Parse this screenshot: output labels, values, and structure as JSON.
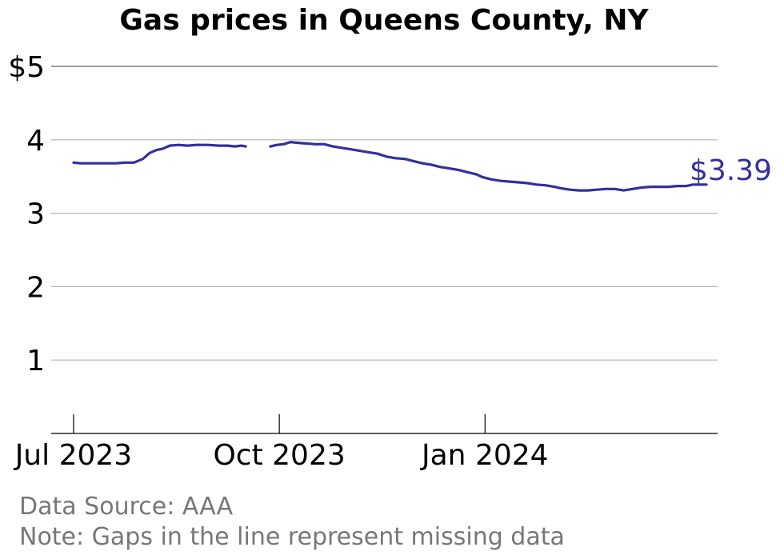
{
  "chart_data": {
    "type": "line",
    "title": "Gas prices in Queens County, NY",
    "xlabel": "",
    "ylabel": "",
    "ylim": [
      0,
      5
    ],
    "xlim": [
      "2023-06-21",
      "2024-04-14"
    ],
    "y_ticks": [
      {
        "value": 5,
        "label": "$5"
      },
      {
        "value": 4,
        "label": "4"
      },
      {
        "value": 3,
        "label": "3"
      },
      {
        "value": 2,
        "label": "2"
      },
      {
        "value": 1,
        "label": "1"
      }
    ],
    "x_ticks": [
      {
        "date": "2023-07-01",
        "label": "Jul 2023"
      },
      {
        "date": "2023-10-01",
        "label": "Oct 2023"
      },
      {
        "date": "2024-01-01",
        "label": "Jan 2024"
      }
    ],
    "grid": true,
    "line_color": "#332f9c",
    "end_label": "$3.39",
    "series": [
      {
        "segments": [
          [
            [
              "2023-07-01",
              3.69
            ],
            [
              "2023-07-04",
              3.68
            ],
            [
              "2023-07-08",
              3.68
            ],
            [
              "2023-07-12",
              3.68
            ],
            [
              "2023-07-16",
              3.68
            ],
            [
              "2023-07-20",
              3.68
            ],
            [
              "2023-07-24",
              3.69
            ],
            [
              "2023-07-28",
              3.69
            ],
            [
              "2023-08-01",
              3.74
            ],
            [
              "2023-08-04",
              3.82
            ],
            [
              "2023-08-07",
              3.86
            ],
            [
              "2023-08-10",
              3.88
            ],
            [
              "2023-08-13",
              3.92
            ],
            [
              "2023-08-17",
              3.93
            ],
            [
              "2023-08-21",
              3.92
            ],
            [
              "2023-08-25",
              3.93
            ],
            [
              "2023-08-30",
              3.93
            ],
            [
              "2023-09-04",
              3.92
            ],
            [
              "2023-09-08",
              3.92
            ],
            [
              "2023-09-11",
              3.91
            ],
            [
              "2023-09-14",
              3.92
            ],
            [
              "2023-09-16",
              3.91
            ]
          ],
          [
            [
              "2023-09-27",
              3.91
            ],
            [
              "2023-09-30",
              3.93
            ],
            [
              "2023-10-03",
              3.94
            ],
            [
              "2023-10-06",
              3.97
            ],
            [
              "2023-10-09",
              3.96
            ],
            [
              "2023-10-13",
              3.95
            ],
            [
              "2023-10-17",
              3.94
            ],
            [
              "2023-10-21",
              3.94
            ],
            [
              "2023-10-25",
              3.91
            ],
            [
              "2023-10-29",
              3.89
            ],
            [
              "2023-11-02",
              3.87
            ],
            [
              "2023-11-06",
              3.85
            ],
            [
              "2023-11-10",
              3.83
            ],
            [
              "2023-11-14",
              3.81
            ],
            [
              "2023-11-18",
              3.77
            ],
            [
              "2023-11-22",
              3.75
            ],
            [
              "2023-11-26",
              3.74
            ],
            [
              "2023-11-30",
              3.71
            ],
            [
              "2023-12-04",
              3.68
            ],
            [
              "2023-12-08",
              3.66
            ],
            [
              "2023-12-12",
              3.63
            ],
            [
              "2023-12-16",
              3.61
            ],
            [
              "2023-12-20",
              3.59
            ],
            [
              "2023-12-24",
              3.56
            ],
            [
              "2023-12-28",
              3.53
            ],
            [
              "2023-12-31",
              3.49
            ],
            [
              "2024-01-04",
              3.46
            ],
            [
              "2024-01-08",
              3.44
            ],
            [
              "2024-01-12",
              3.43
            ],
            [
              "2024-01-16",
              3.42
            ],
            [
              "2024-01-20",
              3.41
            ],
            [
              "2024-01-24",
              3.39
            ],
            [
              "2024-01-28",
              3.38
            ],
            [
              "2024-02-01",
              3.36
            ],
            [
              "2024-02-04",
              3.34
            ],
            [
              "2024-02-08",
              3.32
            ],
            [
              "2024-02-12",
              3.31
            ],
            [
              "2024-02-16",
              3.31
            ],
            [
              "2024-02-20",
              3.32
            ],
            [
              "2024-02-24",
              3.33
            ],
            [
              "2024-02-28",
              3.33
            ],
            [
              "2024-03-03",
              3.31
            ],
            [
              "2024-03-07",
              3.33
            ],
            [
              "2024-03-11",
              3.35
            ],
            [
              "2024-03-15",
              3.36
            ],
            [
              "2024-03-19",
              3.36
            ],
            [
              "2024-03-23",
              3.36
            ],
            [
              "2024-03-27",
              3.37
            ],
            [
              "2024-03-31",
              3.37
            ],
            [
              "2024-04-03",
              3.39
            ],
            [
              "2024-04-06",
              3.39
            ],
            [
              "2024-04-09",
              3.39
            ]
          ]
        ]
      }
    ]
  },
  "footer": {
    "source": "Data Source: AAA",
    "note": "Note: Gaps in the line represent missing data"
  }
}
